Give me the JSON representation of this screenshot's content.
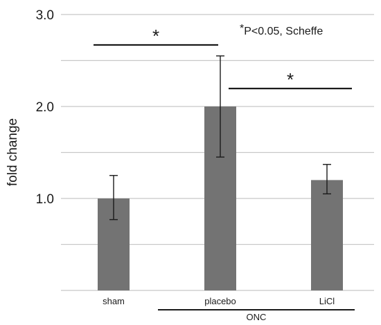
{
  "chart_data": {
    "type": "bar",
    "categories": [
      "sham",
      "placebo",
      "LiCl"
    ],
    "values": [
      1.0,
      2.0,
      1.2
    ],
    "error_low": [
      0.77,
      1.45,
      1.05
    ],
    "error_high": [
      1.25,
      2.55,
      1.37
    ],
    "ylabel": "fold change",
    "yticks": [
      "1.0",
      "2.0",
      "3.0"
    ],
    "ylim": [
      0,
      3.0
    ],
    "gridlines": [
      0.5,
      1.0,
      1.5,
      2.0,
      2.5,
      3.0
    ],
    "grid": true,
    "group_label": "ONC",
    "group_members": [
      "placebo",
      "LiCl"
    ],
    "bar_color": "#737373",
    "significance": [
      {
        "from": "sham",
        "to": "placebo",
        "label": "*"
      },
      {
        "from": "placebo",
        "to": "LiCl",
        "label": "*"
      }
    ],
    "annotation": {
      "star": "*",
      "text": "P<0.05, Scheffe"
    }
  }
}
